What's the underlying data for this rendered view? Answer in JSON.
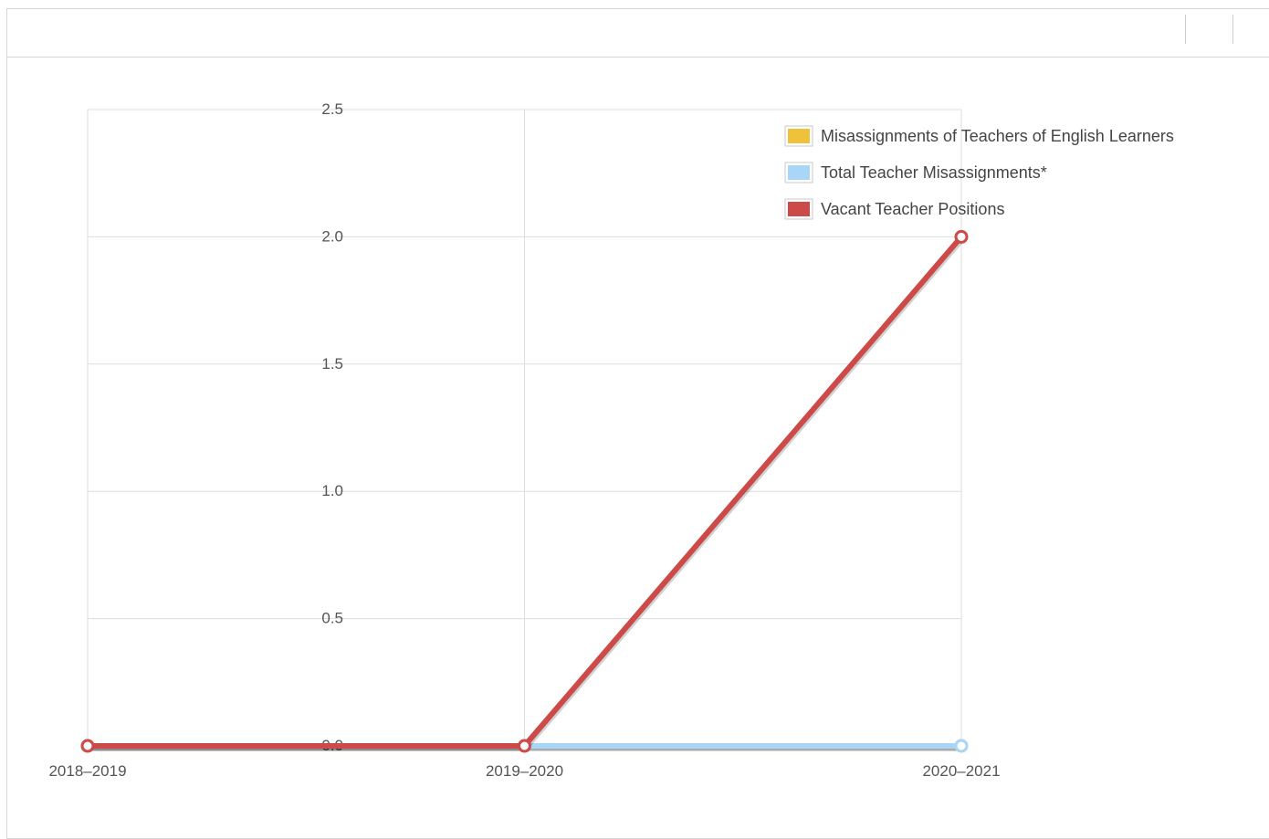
{
  "chart_data": {
    "type": "line",
    "categories": [
      "2018–2019",
      "2019–2020",
      "2020–2021"
    ],
    "ylim": [
      0,
      2.5
    ],
    "yticks": [
      "0.0",
      "0.5",
      "1.0",
      "1.5",
      "2.0",
      "2.5"
    ],
    "ytick_values": [
      0,
      0.5,
      1.0,
      1.5,
      2.0,
      2.5
    ],
    "grid": true,
    "legend_position": "top-right",
    "series": [
      {
        "name": "Misassignments of Teachers of English Learners",
        "color": "#f0c13b",
        "values": [
          0,
          0,
          0
        ]
      },
      {
        "name": "Total Teacher Misassignments*",
        "color": "#a9d5f7",
        "values": [
          0,
          0,
          0
        ]
      },
      {
        "name": "Vacant Teacher Positions",
        "color": "#cc4a48",
        "values": [
          0,
          0,
          2
        ]
      }
    ]
  }
}
